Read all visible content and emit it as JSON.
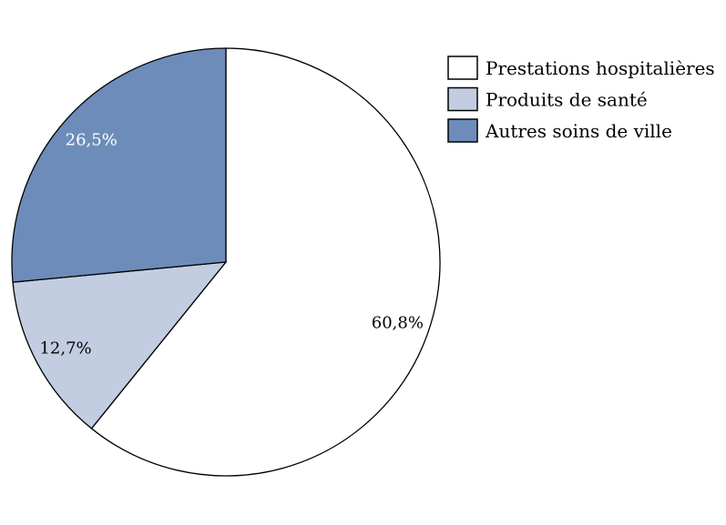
{
  "chart_data": {
    "type": "pie",
    "start_angle": "top",
    "direction": "clockwise",
    "slices": [
      {
        "label": "Prestations hospitalières",
        "value": 60.8,
        "value_label": "60,8%",
        "color": "#ffffff",
        "label_color": "#000000"
      },
      {
        "label": "Produits de santé",
        "value": 12.7,
        "value_label": "12,7%",
        "color": "#c3cde1",
        "label_color": "#000000"
      },
      {
        "label": "Autres soins de ville",
        "value": 26.5,
        "value_label": "26,5%",
        "color": "#6d8cb9",
        "label_color": "#ffffff"
      }
    ],
    "legend_placement": "top-right"
  }
}
